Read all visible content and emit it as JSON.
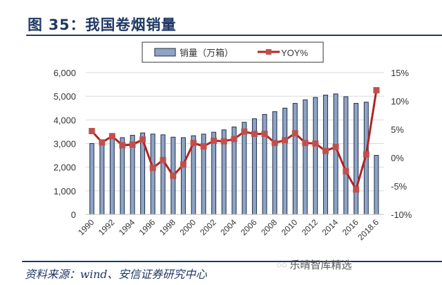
{
  "header": {
    "title": "图 35：我国卷烟销量"
  },
  "footer": {
    "source": "资料来源：wind、安信证券研究中心",
    "watermark": "乐晴智库精选",
    "watermark_icon": "wechat-icon"
  },
  "legend": {
    "bar_label": "销量（万箱）",
    "line_label": "YOY%"
  },
  "colors": {
    "bar_fill": "#8fa3c4",
    "bar_stroke": "#1f2f4a",
    "line": "#b22222",
    "marker": "#c0504d",
    "title": "#1f3864",
    "grid": "#d9d9d9"
  },
  "chart_data": {
    "type": "bar",
    "title": "我国卷烟销量",
    "xlabel": "",
    "ylabel": "销量（万箱）",
    "y2label": "YOY%",
    "ylim": [
      0,
      6000
    ],
    "y2lim": [
      -10,
      15
    ],
    "yticks": [
      "0",
      "1,000",
      "2,000",
      "3,000",
      "4,000",
      "5,000",
      "6,000"
    ],
    "y2ticks": [
      "-10%",
      "-5%",
      "0%",
      "5%",
      "10%",
      "15%"
    ],
    "xtick_labels": [
      "1990",
      "1992",
      "1994",
      "1996",
      "1998",
      "2000",
      "2002",
      "2004",
      "2006",
      "2008",
      "2010",
      "2012",
      "2014",
      "2016",
      "2018.6"
    ],
    "grid": true,
    "legend_position": "top",
    "categories": [
      "1990",
      "1991",
      "1992",
      "1993",
      "1994",
      "1995",
      "1996",
      "1997",
      "1998",
      "1999",
      "2000",
      "2001",
      "2002",
      "2003",
      "2004",
      "2005",
      "2006",
      "2007",
      "2008",
      "2009",
      "2010",
      "2011",
      "2012",
      "2013",
      "2014",
      "2015",
      "2016",
      "2017",
      "2018.6"
    ],
    "series": [
      {
        "name": "销量（万箱）",
        "type": "bar",
        "axis": "left",
        "values": [
          3000,
          3100,
          3250,
          3250,
          3350,
          3450,
          3400,
          3370,
          3270,
          3250,
          3330,
          3400,
          3480,
          3580,
          3700,
          3900,
          4050,
          4230,
          4350,
          4500,
          4700,
          4850,
          4950,
          5050,
          5100,
          4980,
          4700,
          4750,
          2500
        ]
      },
      {
        "name": "YOY%",
        "type": "line",
        "axis": "right",
        "values": [
          4.7,
          2.7,
          3.8,
          2.2,
          2.3,
          3.2,
          -1.8,
          -0.4,
          -3.2,
          -1.2,
          2.6,
          2.0,
          3.0,
          2.9,
          3.3,
          4.6,
          4.2,
          4.2,
          2.6,
          3.1,
          4.3,
          2.6,
          2.5,
          1.2,
          1.9,
          -2.4,
          -5.6,
          0.6,
          11.9
        ]
      }
    ]
  }
}
